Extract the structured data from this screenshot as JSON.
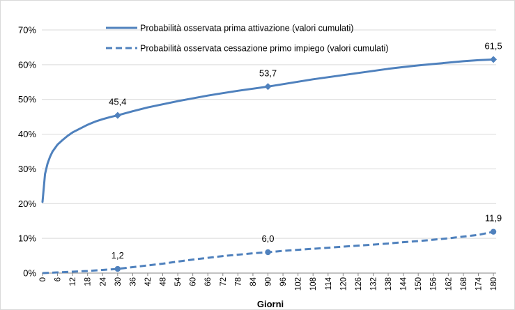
{
  "chart_data": {
    "type": "line",
    "title": "",
    "xlabel": "Giorni",
    "ylabel": "",
    "xlim": [
      0,
      180
    ],
    "ylim": [
      0,
      70
    ],
    "y_ticks": [
      "0%",
      "10%",
      "20%",
      "30%",
      "40%",
      "50%",
      "60%",
      "70%"
    ],
    "x_ticks": [
      "0",
      "6",
      "12",
      "18",
      "24",
      "30",
      "36",
      "42",
      "48",
      "54",
      "60",
      "66",
      "72",
      "78",
      "84",
      "90",
      "96",
      "102",
      "108",
      "114",
      "120",
      "126",
      "132",
      "138",
      "144",
      "150",
      "156",
      "162",
      "168",
      "174",
      "180"
    ],
    "grid": "horizontal",
    "legend_position": "top",
    "series": [
      {
        "name": "Probabilità osservata prima attivazione (valori cumulati)",
        "style": "solid",
        "color": "#4f81bd",
        "x": [
          0,
          1,
          2,
          3,
          4,
          5,
          6,
          8,
          10,
          12,
          15,
          18,
          21,
          24,
          27,
          30,
          36,
          42,
          48,
          54,
          60,
          66,
          72,
          78,
          84,
          90,
          96,
          102,
          108,
          114,
          120,
          126,
          132,
          138,
          144,
          150,
          156,
          162,
          168,
          174,
          180
        ],
        "values": [
          20.5,
          28.5,
          31.5,
          33.5,
          35.0,
          36.0,
          37.0,
          38.3,
          39.5,
          40.5,
          41.6,
          42.7,
          43.6,
          44.3,
          44.9,
          45.4,
          46.6,
          47.7,
          48.6,
          49.5,
          50.3,
          51.1,
          51.8,
          52.5,
          53.1,
          53.7,
          54.4,
          55.1,
          55.8,
          56.4,
          57.0,
          57.6,
          58.2,
          58.8,
          59.3,
          59.8,
          60.2,
          60.6,
          61.0,
          61.3,
          61.5
        ],
        "markers": [
          {
            "x": 30,
            "y": 45.4,
            "label": "45,4"
          },
          {
            "x": 90,
            "y": 53.7,
            "label": "53,7"
          },
          {
            "x": 180,
            "y": 61.5,
            "label": "61,5"
          }
        ]
      },
      {
        "name": "Probabilità osservata cessazione primo impiego (valori cumulati)",
        "style": "dashed",
        "color": "#4f81bd",
        "x": [
          0,
          6,
          12,
          18,
          24,
          30,
          36,
          42,
          48,
          54,
          60,
          66,
          72,
          78,
          84,
          90,
          96,
          102,
          108,
          114,
          120,
          126,
          132,
          138,
          144,
          150,
          156,
          162,
          168,
          174,
          180
        ],
        "values": [
          0.0,
          0.2,
          0.4,
          0.6,
          0.9,
          1.2,
          1.7,
          2.2,
          2.7,
          3.3,
          3.9,
          4.4,
          4.9,
          5.3,
          5.7,
          6.0,
          6.4,
          6.7,
          7.0,
          7.3,
          7.6,
          7.9,
          8.2,
          8.5,
          8.9,
          9.2,
          9.6,
          10.0,
          10.5,
          11.0,
          11.9
        ],
        "markers": [
          {
            "x": 30,
            "y": 1.2,
            "label": "1,2"
          },
          {
            "x": 90,
            "y": 6.0,
            "label": "6,0"
          },
          {
            "x": 180,
            "y": 11.9,
            "label": "11,9"
          }
        ]
      }
    ]
  }
}
